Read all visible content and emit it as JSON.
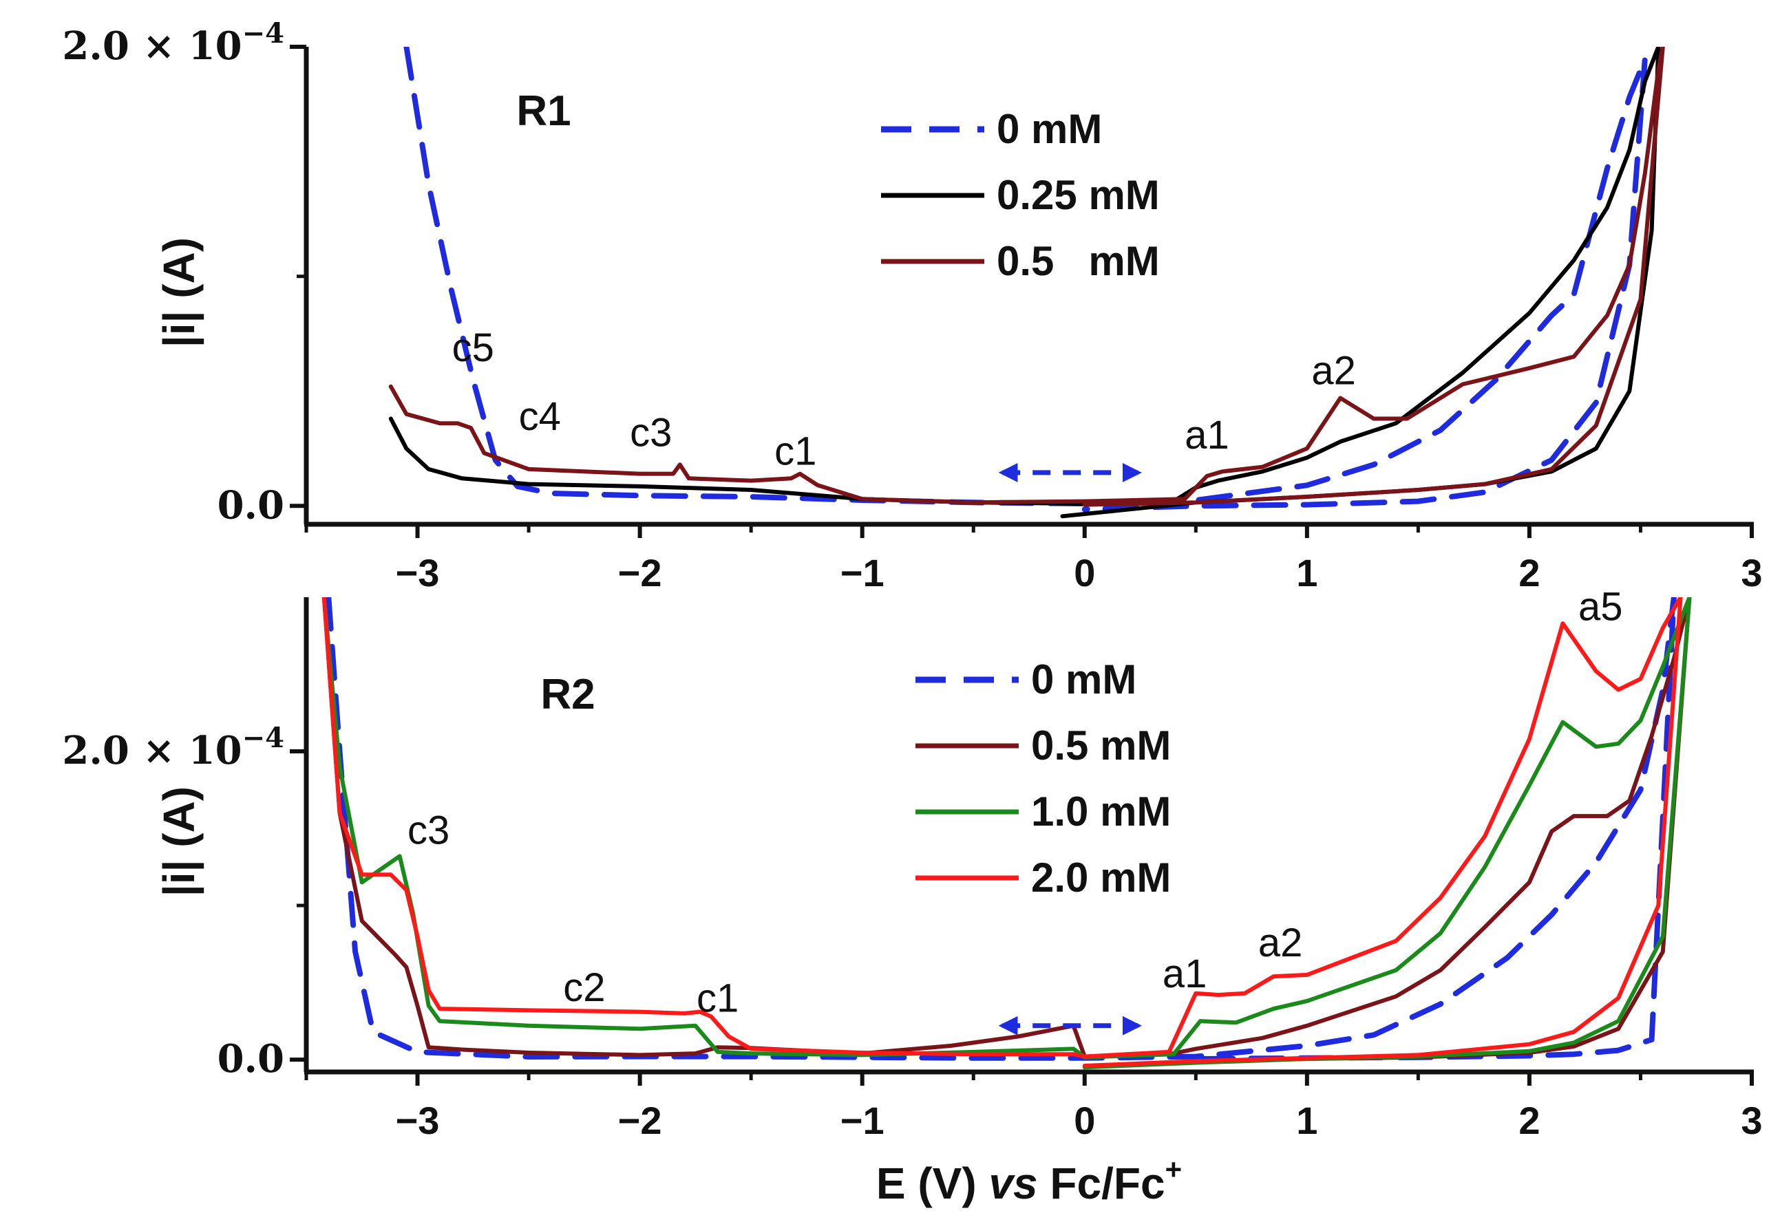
{
  "chart_data": {
    "type": "line",
    "xlabel": "E (V) vs Fc/Fc⁺",
    "xlabel_parts": {
      "pre": "E (V) ",
      "italic": "vs",
      "post": " Fc/Fc",
      "sup": "+"
    },
    "xlim": [
      -3.5,
      3
    ],
    "xticks": [
      {
        "value": -3,
        "label": "−3"
      },
      {
        "value": -2,
        "label": "−2"
      },
      {
        "value": -1,
        "label": "−1"
      },
      {
        "value": 0,
        "label": "0"
      },
      {
        "value": 1,
        "label": "1"
      },
      {
        "value": 2,
        "label": "2"
      },
      {
        "value": 3,
        "label": "3"
      }
    ],
    "panels": [
      {
        "label": "R1",
        "ylabel": "|i| (A)",
        "ylim": [
          -8e-06,
          0.0002
        ],
        "yticks": [
          {
            "value": 0,
            "label": "0.0"
          },
          {
            "value": 0.0002,
            "label": "2.0 × 10⁻⁴",
            "mantissa": "2.0 × 10",
            "exp": "−4"
          }
        ],
        "legend": [
          {
            "label": "0 mM",
            "color": "#1f2bdf",
            "dash": "dashed"
          },
          {
            "label": "0.25 mM",
            "color": "#000000",
            "dash": "solid"
          },
          {
            "label": "0.5   mM",
            "color": "#7a1418",
            "dash": "solid"
          }
        ],
        "annotations": [
          {
            "text": "c5",
            "x": -2.75,
            "y": 6.3e-05
          },
          {
            "text": "c4",
            "x": -2.45,
            "y": 3.3e-05
          },
          {
            "text": "c3",
            "x": -1.95,
            "y": 2.6e-05
          },
          {
            "text": "c1",
            "x": -1.3,
            "y": 1.8e-05
          },
          {
            "text": "a1",
            "x": 0.55,
            "y": 2.5e-05
          },
          {
            "text": "a2",
            "x": 1.12,
            "y": 5.3e-05
          }
        ],
        "series": [
          {
            "name": "0 mM",
            "color": "#1f2bdf",
            "dash": "dashed",
            "x": [
              -3.05,
              -2.95,
              -2.85,
              -2.75,
              -2.65,
              -2.55,
              -2.4,
              -2.0,
              -1.5,
              -1.0,
              -0.5,
              0.0,
              0.5,
              1.0,
              1.3,
              1.6,
              1.85,
              2.1,
              2.2,
              2.35,
              2.45,
              2.5,
              2.52,
              2.45,
              2.3,
              2.1,
              1.8,
              1.5,
              1.0,
              0.5,
              0.0
            ],
            "y": [
              0.0002,
              0.00014,
              9.5e-05,
              5.5e-05,
              2e-05,
              8.5e-06,
              5.5e-06,
              4.5e-06,
              4e-06,
              2.5e-06,
              1.5e-06,
              1e-06,
              2.5e-06,
              9e-06,
              1.8e-05,
              3.3e-05,
              5.5e-05,
              8.3e-05,
              9.2e-05,
              0.000147,
              0.000178,
              0.00019,
              0.000195,
              0.000105,
              4.5e-05,
              2e-05,
              6e-06,
              2e-06,
              5e-07,
              0.0,
              -1.5e-06
            ]
          },
          {
            "name": "0.25 mM",
            "color": "#000000",
            "dash": "solid",
            "x": [
              -3.12,
              -3.05,
              -2.95,
              -2.8,
              -2.5,
              -2.0,
              -1.5,
              -1.0,
              -0.5,
              0.0,
              0.4,
              0.5,
              0.6,
              0.8,
              1.0,
              1.15,
              1.4,
              1.7,
              2.0,
              2.2,
              2.35,
              2.45,
              2.52,
              2.58,
              2.55,
              2.45,
              2.3,
              2.1,
              1.8,
              1.5,
              1.0,
              0.5,
              0.0,
              -0.1
            ],
            "y": [
              3.8e-05,
              2.5e-05,
              1.6e-05,
              1.2e-05,
              9.5e-06,
              8.5e-06,
              7e-06,
              3e-06,
              1.5e-06,
              1e-06,
              2e-06,
              8e-06,
              1.1e-05,
              1.5e-05,
              2.1e-05,
              2.8e-05,
              3.6e-05,
              5.8e-05,
              8.4e-05,
              0.000107,
              0.00013,
              0.000155,
              0.000185,
              0.0002,
              0.00012,
              5e-05,
              2.5e-05,
              1.5e-05,
              9.5e-06,
              7e-06,
              4e-06,
              1.5e-06,
              -3.5e-06,
              -4.5e-06
            ]
          },
          {
            "name": "0.5 mM",
            "color": "#7a1418",
            "dash": "solid",
            "x": [
              -3.12,
              -3.05,
              -2.9,
              -2.82,
              -2.76,
              -2.7,
              -2.5,
              -2.0,
              -1.85,
              -1.82,
              -1.78,
              -1.5,
              -1.32,
              -1.28,
              -1.2,
              -1.0,
              -0.5,
              0.0,
              0.45,
              0.55,
              0.62,
              0.8,
              1.0,
              1.15,
              1.3,
              1.45,
              1.7,
              2.0,
              2.2,
              2.35,
              2.45,
              2.52,
              2.58,
              2.6,
              2.5,
              2.3,
              2.1,
              1.8,
              1.5,
              1.0,
              0.5,
              0.0
            ],
            "y": [
              5.2e-05,
              4e-05,
              3.6e-05,
              3.6e-05,
              3.4e-05,
              2.3e-05,
              1.6e-05,
              1.4e-05,
              1.4e-05,
              1.8e-05,
              1.2e-05,
              1.1e-05,
              1.2e-05,
              1.4e-05,
              9e-06,
              3e-06,
              1.5e-06,
              2e-06,
              3e-06,
              1.3e-05,
              1.5e-05,
              1.7e-05,
              2.5e-05,
              4.7e-05,
              3.8e-05,
              3.8e-05,
              5.3e-05,
              6e-05,
              6.5e-05,
              8.3e-05,
              0.000105,
              0.000145,
              0.00019,
              0.0002,
              9e-05,
              3.5e-05,
              1.6e-05,
              9.5e-06,
              7e-06,
              4e-06,
              1.5e-06,
              5e-07
            ]
          }
        ]
      },
      {
        "label": "R2",
        "ylabel": "|i| (A)",
        "ylim": [
          -8e-06,
          0.0003
        ],
        "yticks": [
          {
            "value": 0,
            "label": "0.0"
          },
          {
            "value": 0.0002,
            "label": "2.0 × 10⁻⁴",
            "mantissa": "2.0 × 10",
            "exp": "−4"
          }
        ],
        "legend": [
          {
            "label": "0 mM",
            "color": "#1f2bdf",
            "dash": "dashed"
          },
          {
            "label": "0.5 mM",
            "color": "#7a1418",
            "dash": "solid"
          },
          {
            "label": "1.0 mM",
            "color": "#1a8a1a",
            "dash": "solid"
          },
          {
            "label": "2.0 mM",
            "color": "#ff1a1a",
            "dash": "solid"
          }
        ],
        "annotations": [
          {
            "text": "c3",
            "x": -2.95,
            "y": 0.00014
          },
          {
            "text": "c2",
            "x": -2.25,
            "y": 3.8e-05
          },
          {
            "text": "c1",
            "x": -1.65,
            "y": 3.1e-05
          },
          {
            "text": "a1",
            "x": 0.45,
            "y": 4.7e-05
          },
          {
            "text": "a2",
            "x": 0.88,
            "y": 6.7e-05
          },
          {
            "text": "a5",
            "x": 2.32,
            "y": 0.000285
          }
        ],
        "series": [
          {
            "name": "0 mM",
            "color": "#1f2bdf",
            "dash": "dashed",
            "x": [
              -3.4,
              -3.35,
              -3.28,
              -3.2,
              -3.0,
              -2.5,
              -2.0,
              -1.5,
              -1.0,
              -0.5,
              0.0,
              0.5,
              1.0,
              1.3,
              1.6,
              1.9,
              2.1,
              2.3,
              2.5,
              2.6,
              2.65,
              2.55,
              2.4,
              2.2,
              2.0,
              1.5,
              1.0,
              0.5
            ],
            "y": [
              0.0003,
              0.0002,
              7e-05,
              1.8e-05,
              5e-06,
              1.8e-06,
              2e-06,
              2e-06,
              1.5e-06,
              1e-06,
              1e-06,
              2e-06,
              9e-06,
              1.6e-05,
              3.6e-05,
              6.6e-05,
              9.4e-05,
              0.000128,
              0.000175,
              0.00024,
              0.0003,
              1.3e-05,
              6e-06,
              3.5e-06,
              2.5e-06,
              1.5e-06,
              1e-06,
              5e-07
            ]
          },
          {
            "name": "0.5 mM",
            "color": "#7a1418",
            "dash": "solid",
            "x": [
              -3.42,
              -3.35,
              -3.25,
              -3.1,
              -3.05,
              -3.0,
              -2.95,
              -2.8,
              -2.5,
              -2.0,
              -1.75,
              -1.65,
              -1.5,
              -1.0,
              -0.6,
              -0.3,
              -0.05,
              0.0,
              0.4,
              0.5,
              0.8,
              1.0,
              1.4,
              1.6,
              1.8,
              2.0,
              2.1,
              2.2,
              2.35,
              2.45,
              2.55,
              2.65,
              2.72,
              2.6,
              2.4,
              2.2,
              2.0,
              1.5,
              1.0,
              0.5,
              0.0
            ],
            "y": [
              0.0003,
              0.00016,
              9e-05,
              6.8e-05,
              6e-05,
              3.5e-05,
              8e-06,
              6.5e-06,
              4.5e-06,
              3e-06,
              4e-06,
              8e-06,
              7.5e-06,
              4e-06,
              9e-06,
              1.5e-05,
              2.2e-05,
              2e-06,
              4e-06,
              7e-06,
              1.4e-05,
              2.2e-05,
              4.1e-05,
              5.8e-05,
              8.6e-05,
              0.000115,
              0.000148,
              0.000158,
              0.000158,
              0.000168,
              0.00021,
              0.00026,
              0.0003,
              7e-05,
              2e-05,
              8.5e-06,
              4.5e-06,
              1.5e-06,
              5e-07,
              -1.5e-06,
              -4.5e-06
            ]
          },
          {
            "name": "1.0 mM",
            "color": "#1a8a1a",
            "dash": "solid",
            "x": [
              -3.42,
              -3.35,
              -3.25,
              -3.15,
              -3.08,
              -3.02,
              -2.95,
              -2.9,
              -2.5,
              -2.0,
              -1.75,
              -1.65,
              -1.5,
              -1.0,
              -0.5,
              -0.05,
              0.0,
              0.4,
              0.52,
              0.68,
              0.85,
              1.0,
              1.4,
              1.6,
              1.8,
              2.0,
              2.15,
              2.3,
              2.4,
              2.5,
              2.6,
              2.72,
              2.6,
              2.4,
              2.2,
              2.0,
              1.5,
              1.0,
              0.5,
              0.0
            ],
            "y": [
              0.0003,
              0.00019,
              0.000115,
              0.000125,
              0.000132,
              9.5e-05,
              3.5e-05,
              2.5e-05,
              2.2e-05,
              2e-05,
              2.2e-05,
              5e-06,
              4e-06,
              3e-06,
              5e-06,
              7e-06,
              1.5e-06,
              3.5e-06,
              2.5e-05,
              2.4e-05,
              3.3e-05,
              3.8e-05,
              5.8e-05,
              8.2e-05,
              0.000125,
              0.000178,
              0.000219,
              0.000203,
              0.000205,
              0.00022,
              0.000255,
              0.0003,
              8e-05,
              2.5e-05,
              1.1e-05,
              5.5e-06,
              2e-06,
              5e-07,
              -2e-06,
              -5e-06
            ]
          },
          {
            "name": "2.0 mM",
            "color": "#ff1a1a",
            "dash": "solid",
            "x": [
              -3.42,
              -3.35,
              -3.25,
              -3.17,
              -3.12,
              -3.05,
              -3.0,
              -2.95,
              -2.9,
              -2.5,
              -2.0,
              -1.8,
              -1.73,
              -1.68,
              -1.6,
              -1.5,
              -1.0,
              -0.5,
              -0.05,
              0.0,
              0.38,
              0.5,
              0.6,
              0.72,
              0.85,
              1.0,
              1.4,
              1.6,
              1.8,
              2.0,
              2.15,
              2.3,
              2.4,
              2.5,
              2.6,
              2.68,
              2.58,
              2.4,
              2.2,
              2.0,
              1.5,
              1.0,
              0.5,
              0.0
            ],
            "y": [
              0.0003,
              0.00016,
              0.00012,
              0.00012,
              0.00012,
              0.00011,
              8e-05,
              4.5e-05,
              3.3e-05,
              3.2e-05,
              3.1e-05,
              3e-05,
              3.1e-05,
              2.8e-05,
              1.5e-05,
              7e-06,
              4.5e-06,
              3.5e-06,
              3.5e-06,
              2e-06,
              5e-06,
              4.3e-05,
              4.2e-05,
              4.3e-05,
              5.4e-05,
              5.5e-05,
              7.7e-05,
              0.000105,
              0.000145,
              0.000208,
              0.000283,
              0.000252,
              0.00024,
              0.000247,
              0.00028,
              0.0003,
              0.0001,
              4e-05,
              1.8e-05,
              1e-05,
              3e-06,
              1e-06,
              -1e-06,
              -4e-06
            ]
          }
        ]
      }
    ]
  }
}
